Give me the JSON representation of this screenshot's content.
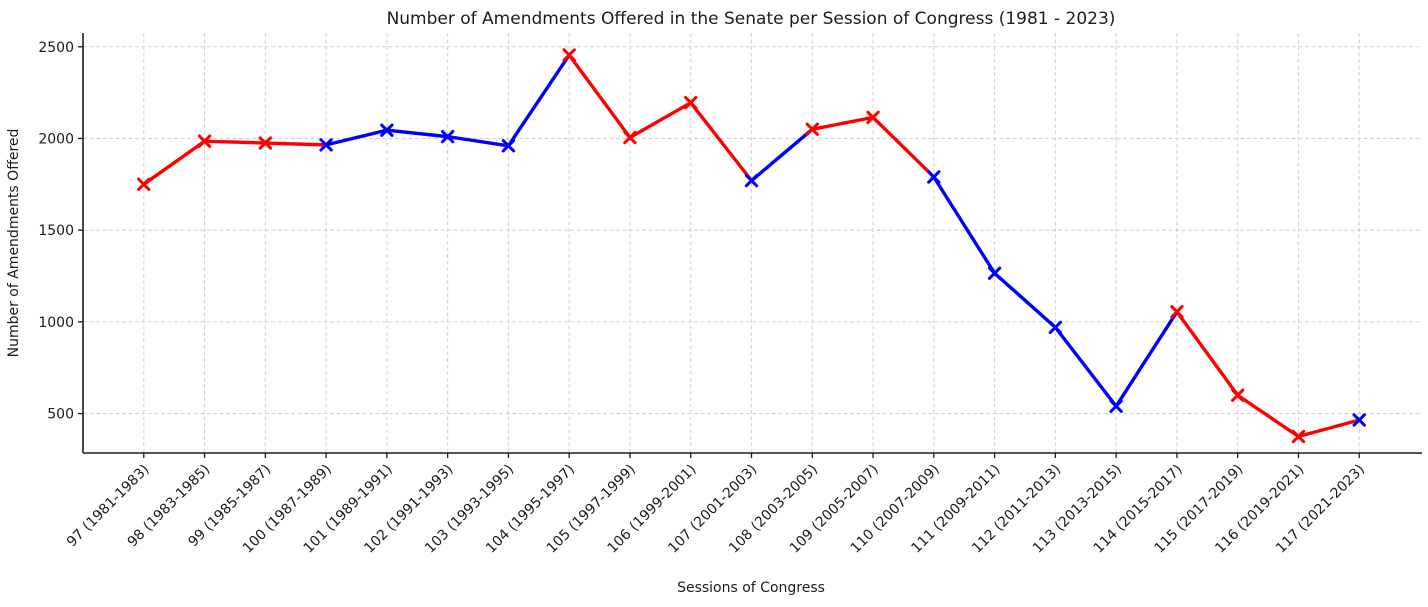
{
  "figure": {
    "title": "Number of Amendments Offered in the Senate per Session of Congress (1981 - 2023)"
  },
  "chart_data": {
    "type": "line",
    "title": "Number of Amendments Offered in the Senate per Session of Congress (1981 - 2023)",
    "xlabel": "Sessions of Congress",
    "ylabel": "Number of Amendments Offered",
    "categories": [
      "97 (1981-1983)",
      "98 (1983-1985)",
      "99 (1985-1987)",
      "100 (1987-1989)",
      "101 (1989-1991)",
      "102 (1991-1993)",
      "103 (1993-1995)",
      "104 (1995-1997)",
      "105 (1997-1999)",
      "106 (1999-2001)",
      "107 (2001-2003)",
      "108 (2003-2005)",
      "109 (2005-2007)",
      "110 (2007-2009)",
      "111 (2009-2011)",
      "112 (2011-2013)",
      "113 (2013-2015)",
      "114 (2015-2017)",
      "115 (2017-2019)",
      "116 (2019-2021)",
      "117 (2021-2023)"
    ],
    "series": [
      {
        "name": "Amendments Offered",
        "values": [
          1750,
          1985,
          1975,
          1965,
          2045,
          2010,
          1960,
          2455,
          2005,
          2195,
          1770,
          2050,
          2115,
          1790,
          1265,
          970,
          540,
          1055,
          600,
          375,
          465
        ],
        "point_party": [
          "R",
          "R",
          "R",
          "D",
          "D",
          "D",
          "D",
          "R",
          "R",
          "R",
          "D",
          "R",
          "R",
          "D",
          "D",
          "D",
          "D",
          "R",
          "R",
          "R",
          "D"
        ]
      }
    ],
    "party_colors": {
      "R": "#FF0000",
      "D": "#0000FF"
    },
    "segment_color_rule": "each connecting segment uses the color of its starting point",
    "marker": "x",
    "yticks": [
      500,
      1000,
      1500,
      2000,
      2500
    ],
    "ylim": [
      285,
      2575
    ],
    "grid": true,
    "grid_style": "dashed",
    "grid_color": "#d4d4d4",
    "legend": "none",
    "x_tick_rotation_deg": 45
  }
}
